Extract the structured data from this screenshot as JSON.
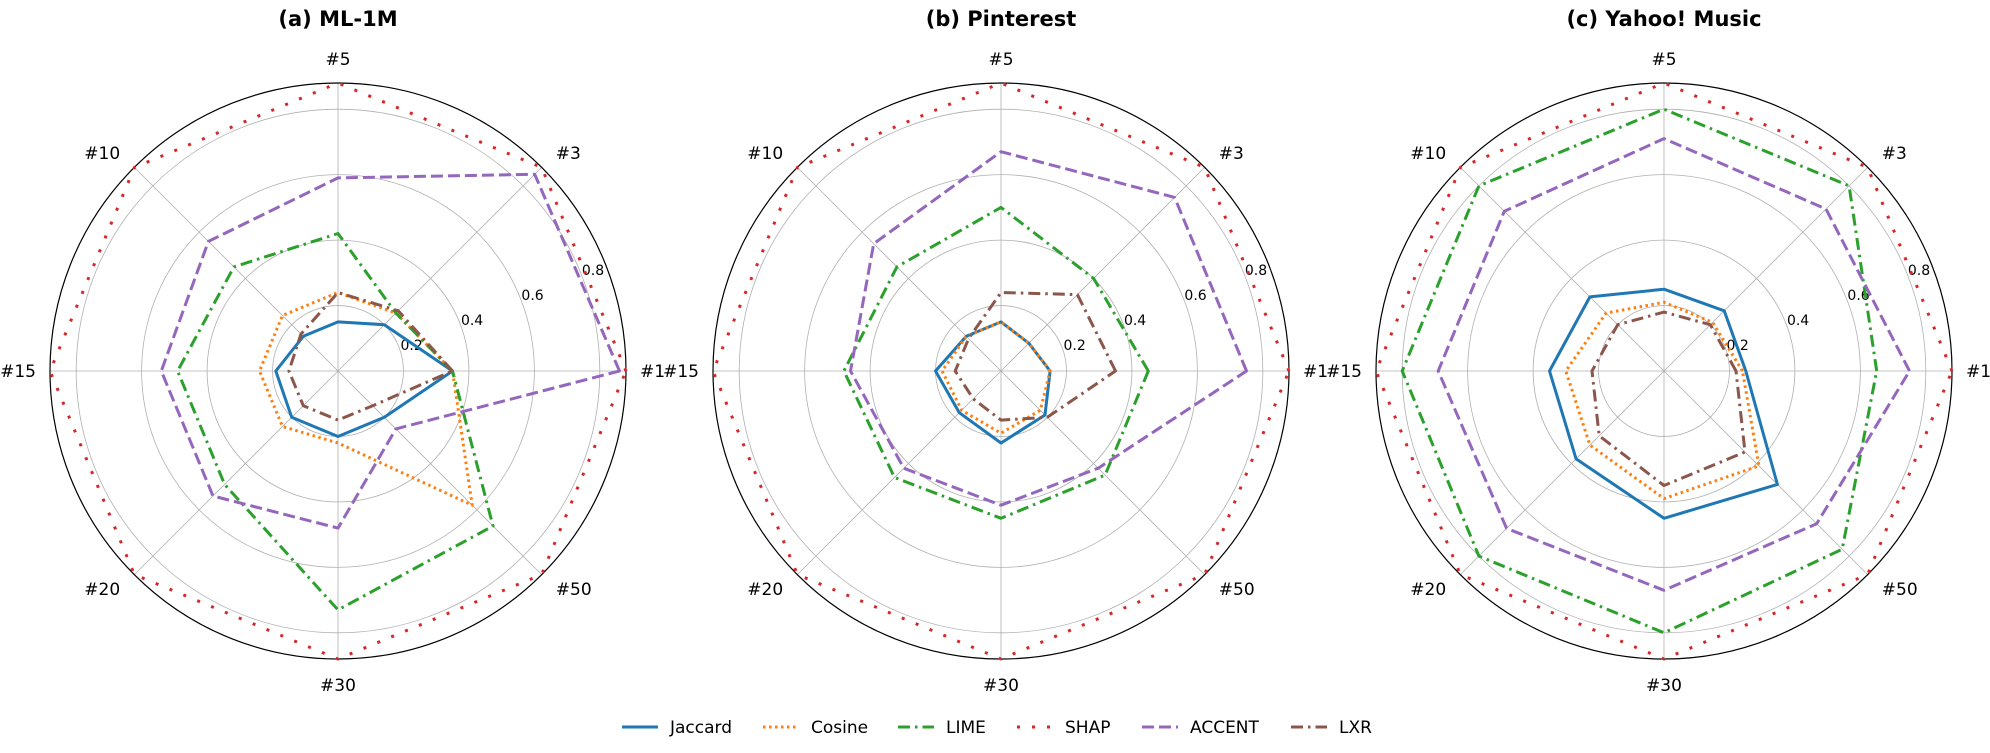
{
  "chart_data": {
    "type": "radar",
    "axes": [
      "#1",
      "#3",
      "#5",
      "#10",
      "#15",
      "#20",
      "#30",
      "#50"
    ],
    "r_ticks": [
      "0.2",
      "0.4",
      "0.6",
      "0.8"
    ],
    "r_tick_values": [
      0.2,
      0.4,
      0.6,
      0.8
    ],
    "r_max": 0.88,
    "grid": true,
    "legend": {
      "position": "bottom-center",
      "entries": [
        "Jaccard",
        "Cosine",
        "LIME",
        "SHAP",
        "ACCENT",
        "LXR"
      ]
    },
    "styles": [
      {
        "name": "Jaccard",
        "color": "#1f77b4",
        "dash": "solid"
      },
      {
        "name": "Cosine",
        "color": "#ff7f0e",
        "dash": "dotted"
      },
      {
        "name": "LIME",
        "color": "#2ca02c",
        "dash": "dashdot"
      },
      {
        "name": "SHAP",
        "color": "#d62728",
        "dash": "sparse-dot"
      },
      {
        "name": "ACCENT",
        "color": "#9467bd",
        "dash": "dashed"
      },
      {
        "name": "LXR",
        "color": "#8c564b",
        "dash": "dashdot"
      }
    ],
    "panels": [
      {
        "title": "(a) ML-1M",
        "series": [
          {
            "name": "Jaccard",
            "values": [
              0.35,
              0.2,
              0.15,
              0.15,
              0.19,
              0.2,
              0.2,
              0.2
            ]
          },
          {
            "name": "Cosine",
            "values": [
              0.35,
              0.25,
              0.24,
              0.24,
              0.24,
              0.24,
              0.22,
              0.58
            ]
          },
          {
            "name": "LIME",
            "values": [
              0.35,
              0.25,
              0.42,
              0.45,
              0.49,
              0.49,
              0.73,
              0.67
            ]
          },
          {
            "name": "SHAP",
            "values": [
              0.88,
              0.88,
              0.88,
              0.88,
              0.88,
              0.88,
              0.88,
              0.88
            ]
          },
          {
            "name": "ACCENT",
            "values": [
              0.86,
              0.85,
              0.59,
              0.56,
              0.54,
              0.54,
              0.48,
              0.25
            ]
          },
          {
            "name": "LXR",
            "values": [
              0.35,
              0.26,
              0.24,
              0.16,
              0.15,
              0.15,
              0.15,
              0.15
            ]
          }
        ]
      },
      {
        "title": "(b) Pinterest",
        "series": [
          {
            "name": "Jaccard",
            "values": [
              0.15,
              0.12,
              0.15,
              0.15,
              0.2,
              0.18,
              0.22,
              0.19
            ]
          },
          {
            "name": "Cosine",
            "values": [
              0.15,
              0.12,
              0.15,
              0.15,
              0.18,
              0.17,
              0.19,
              0.17
            ]
          },
          {
            "name": "LIME",
            "values": [
              0.45,
              0.4,
              0.5,
              0.45,
              0.48,
              0.46,
              0.45,
              0.45
            ]
          },
          {
            "name": "SHAP",
            "values": [
              0.88,
              0.88,
              0.88,
              0.88,
              0.88,
              0.88,
              0.88,
              0.88
            ]
          },
          {
            "name": "ACCENT",
            "values": [
              0.75,
              0.75,
              0.67,
              0.55,
              0.46,
              0.42,
              0.41,
              0.42
            ]
          },
          {
            "name": "LXR",
            "values": [
              0.35,
              0.33,
              0.24,
              0.14,
              0.14,
              0.12,
              0.15,
              0.2
            ]
          }
        ]
      },
      {
        "title": "(c) Yahoo! Music",
        "series": [
          {
            "name": "Jaccard",
            "values": [
              0.25,
              0.26,
              0.25,
              0.32,
              0.35,
              0.38,
              0.45,
              0.49
            ]
          },
          {
            "name": "Cosine",
            "values": [
              0.24,
              0.21,
              0.21,
              0.25,
              0.3,
              0.32,
              0.39,
              0.41
            ]
          },
          {
            "name": "LIME",
            "values": [
              0.65,
              0.8,
              0.8,
              0.8,
              0.8,
              0.8,
              0.8,
              0.77
            ]
          },
          {
            "name": "SHAP",
            "values": [
              0.88,
              0.88,
              0.88,
              0.88,
              0.88,
              0.88,
              0.88,
              0.88
            ]
          },
          {
            "name": "ACCENT",
            "values": [
              0.75,
              0.7,
              0.71,
              0.69,
              0.69,
              0.68,
              0.67,
              0.66
            ]
          },
          {
            "name": "LXR",
            "values": [
              0.22,
              0.2,
              0.18,
              0.2,
              0.22,
              0.28,
              0.35,
              0.35
            ]
          }
        ]
      }
    ]
  }
}
